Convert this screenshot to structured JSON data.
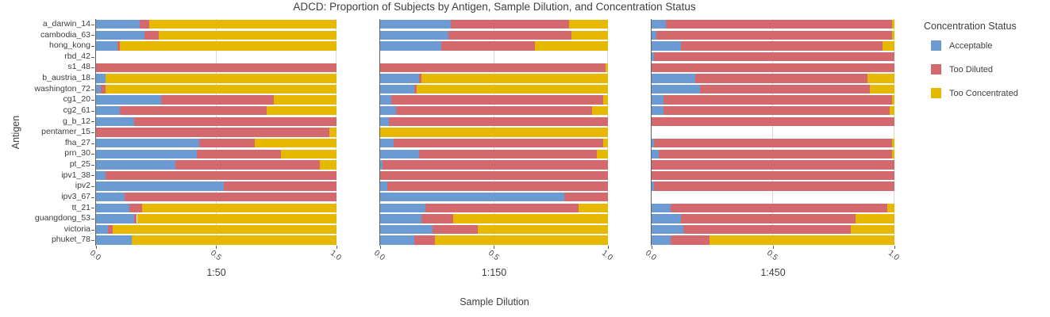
{
  "chart_data": {
    "type": "bar",
    "subtype": "horizontal-stacked-faceted",
    "title": "ADCD: Proportion of Subjects by Antigen, Sample Dilution, and Concentration Status",
    "xlabel": "Sample Dilution",
    "ylabel": "Antigen",
    "xlim": [
      0,
      1
    ],
    "xticks": [
      "0.0",
      "0.5",
      "1.0"
    ],
    "grid": "major-x",
    "legend_title": "Concentration Status",
    "legend_position": "right",
    "statuses": [
      "Acceptable",
      "Too Diluted",
      "Too Concentrated"
    ],
    "colors": {
      "Acceptable": "#6b9bd2",
      "Too Diluted": "#d3696d",
      "Too Concentrated": "#e6b800"
    },
    "categories": [
      "a_darwin_14",
      "cambodia_63",
      "hong_kong",
      "rbd_42",
      "s1_48",
      "b_austria_18",
      "washington_72",
      "cg1_20",
      "cg2_61",
      "g_b_12",
      "pentamer_15",
      "fha_27",
      "prn_30",
      "pt_25",
      "ipv1_38",
      "ipv2",
      "ipv3_67",
      "tt_21",
      "guangdong_53",
      "victoria",
      "phuket_78"
    ],
    "facets": [
      {
        "label": "1:50",
        "values": [
          [
            0.18,
            0.04,
            0.78
          ],
          [
            0.2,
            0.06,
            0.74
          ],
          [
            0.09,
            0.01,
            0.9
          ],
          [
            0,
            0,
            0
          ],
          [
            0,
            1.0,
            0
          ],
          [
            0.04,
            0,
            0.96
          ],
          [
            0.02,
            0.02,
            0.96
          ],
          [
            0.27,
            0.47,
            0.26
          ],
          [
            0.1,
            0.61,
            0.29
          ],
          [
            0.16,
            0.84,
            0
          ],
          [
            0,
            0.97,
            0.03
          ],
          [
            0.43,
            0.23,
            0.34
          ],
          [
            0.42,
            0.35,
            0.23
          ],
          [
            0.33,
            0.6,
            0.07
          ],
          [
            0.04,
            0.96,
            0
          ],
          [
            0.53,
            0.47,
            0
          ],
          [
            0.12,
            0.88,
            0
          ],
          [
            0.14,
            0.05,
            0.81
          ],
          [
            0.16,
            0.01,
            0.83
          ],
          [
            0.05,
            0.02,
            0.93
          ],
          [
            0.15,
            0,
            0.85
          ]
        ]
      },
      {
        "label": "1:150",
        "values": [
          [
            0.31,
            0.52,
            0.17
          ],
          [
            0.3,
            0.54,
            0.16
          ],
          [
            0.27,
            0.41,
            0.32
          ],
          [
            0,
            0,
            0
          ],
          [
            0,
            0.99,
            0.01
          ],
          [
            0.17,
            0.01,
            0.82
          ],
          [
            0.15,
            0.01,
            0.84
          ],
          [
            0.05,
            0.93,
            0.02
          ],
          [
            0.07,
            0.86,
            0.07
          ],
          [
            0.04,
            0.96,
            0
          ],
          [
            0,
            0,
            1.0
          ],
          [
            0.06,
            0.92,
            0.02
          ],
          [
            0.17,
            0.78,
            0.05
          ],
          [
            0.01,
            0.99,
            0
          ],
          [
            0,
            1.0,
            0
          ],
          [
            0.03,
            0.97,
            0
          ],
          [
            0.81,
            0.19,
            0
          ],
          [
            0.2,
            0.67,
            0.13
          ],
          [
            0.18,
            0.14,
            0.68
          ],
          [
            0.23,
            0.2,
            0.57
          ],
          [
            0.15,
            0.09,
            0.76
          ]
        ]
      },
      {
        "label": "1:450",
        "values": [
          [
            0.06,
            0.93,
            0.01
          ],
          [
            0.02,
            0.97,
            0.01
          ],
          [
            0.12,
            0.83,
            0.05
          ],
          [
            0.01,
            0.99,
            0
          ],
          [
            0,
            1.0,
            0
          ],
          [
            0.18,
            0.71,
            0.11
          ],
          [
            0.2,
            0.7,
            0.1
          ],
          [
            0.05,
            0.94,
            0.01
          ],
          [
            0.05,
            0.93,
            0.02
          ],
          [
            0,
            1.0,
            0
          ],
          [
            0,
            0,
            0
          ],
          [
            0.01,
            0.98,
            0.01
          ],
          [
            0.03,
            0.96,
            0.01
          ],
          [
            0,
            1.0,
            0
          ],
          [
            0,
            1.0,
            0
          ],
          [
            0.01,
            0.99,
            0
          ],
          [
            0,
            0,
            0
          ],
          [
            0.08,
            0.89,
            0.03
          ],
          [
            0.12,
            0.72,
            0.16
          ],
          [
            0.13,
            0.69,
            0.18
          ],
          [
            0.08,
            0.16,
            0.76
          ]
        ]
      }
    ]
  }
}
